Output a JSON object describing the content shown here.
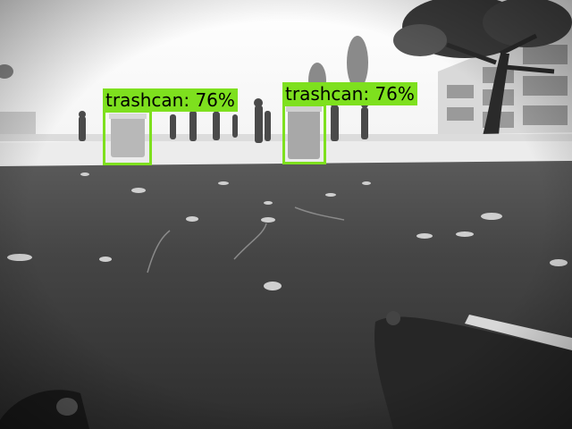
{
  "detections": [
    {
      "label_text": "trashcan: 76%",
      "class": "trashcan",
      "confidence_percent": 76
    },
    {
      "label_text": "trashcan: 76%",
      "class": "trashcan",
      "confidence_percent": 76
    }
  ],
  "colors": {
    "box_color": "#7ee01e",
    "label_text_color": "#000000"
  }
}
